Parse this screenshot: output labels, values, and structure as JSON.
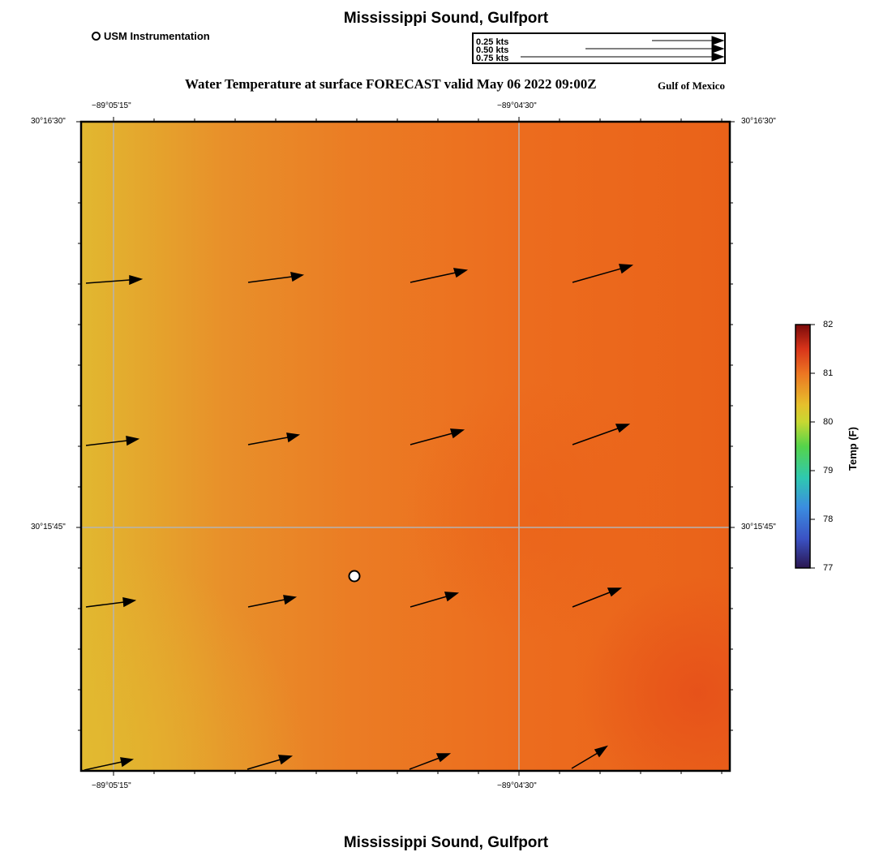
{
  "map": {
    "title": "Mississippi Sound, Gulfport",
    "footer_title": "Mississippi Sound, Gulfport",
    "subtitle": "Water Temperature at surface FORECAST valid May 06 2022 09:00Z",
    "region": "Gulf of Mexico",
    "station_legend_label": "USM Instrumentation",
    "vector_scale_labels": [
      "0.25 kts",
      "0.50 kts",
      "0.75 kts"
    ],
    "lon_labels": [
      "−89°05'15\"",
      "−89°04'30\""
    ],
    "lat_labels": [
      "30°16'30\"",
      "30°15'45\""
    ]
  },
  "colorbar": {
    "title": "Temp (F)",
    "tick_labels": [
      "82",
      "81",
      "80",
      "79",
      "78",
      "77"
    ],
    "min": 77,
    "max": 82
  },
  "colors": {
    "warm_west": "#e2b830",
    "mid": "#ec7822",
    "hot_east": "#e95a18",
    "gridline": "#b4b4b4"
  }
}
